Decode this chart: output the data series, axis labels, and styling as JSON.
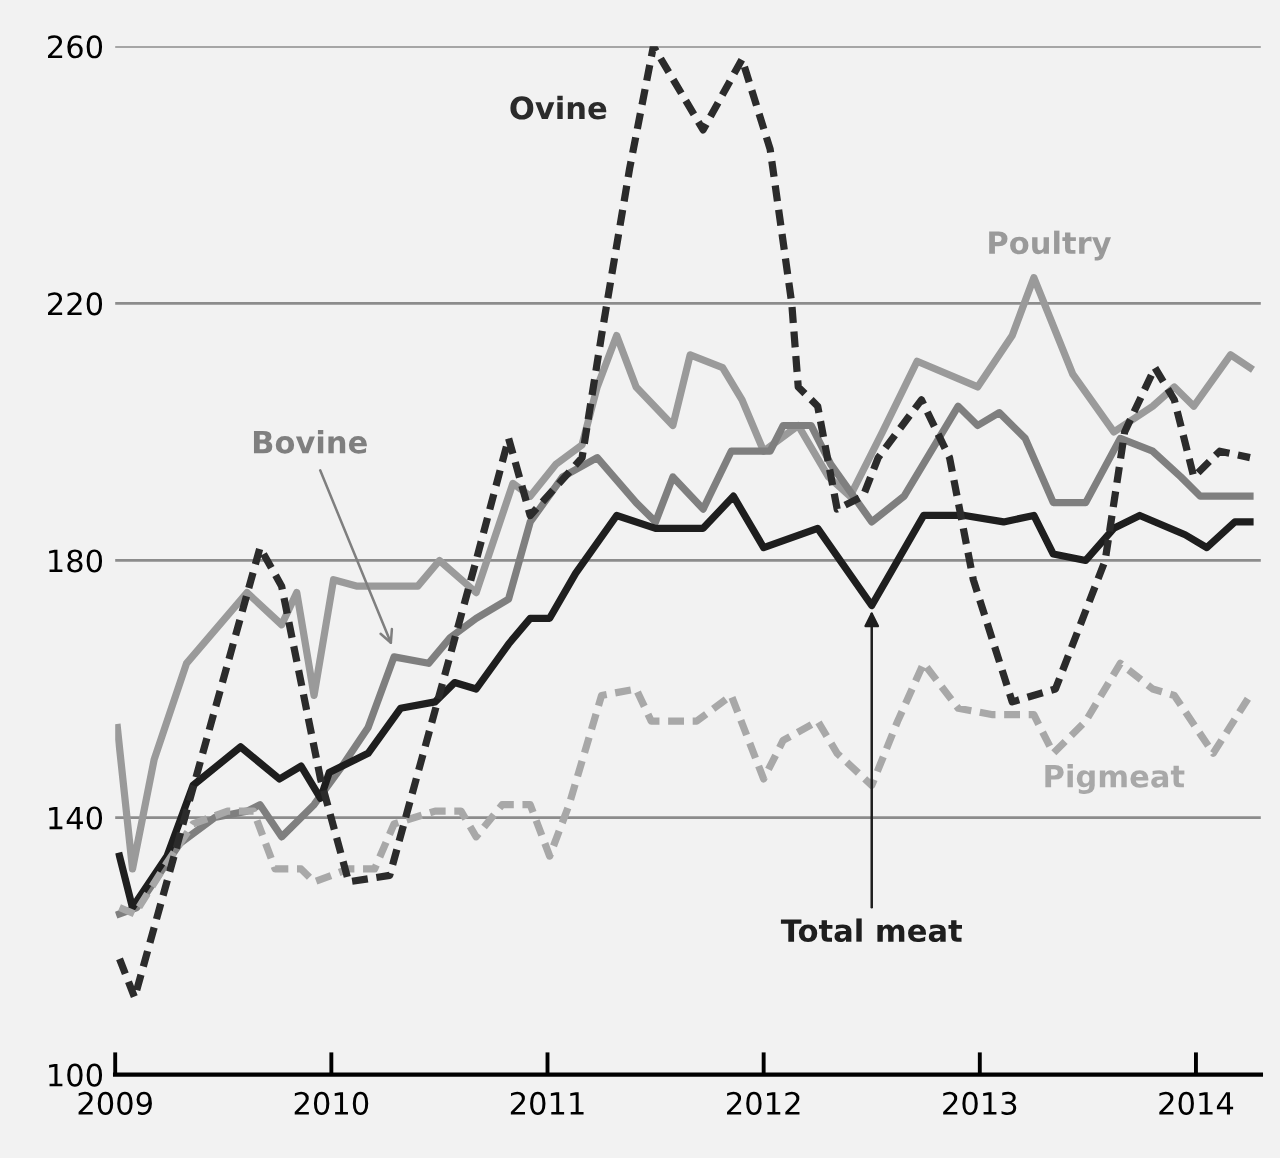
{
  "chart_data": {
    "type": "line",
    "xlim": [
      2009,
      2014.3
    ],
    "ylim": [
      100,
      260
    ],
    "xticks": [
      2009,
      2010,
      2011,
      2012,
      2013,
      2014
    ],
    "yticks": [
      100,
      140,
      180,
      220,
      260
    ],
    "grid": "y",
    "series": [
      {
        "name": "Ovine",
        "color": "#2b2b2b",
        "line_style": "dashed",
        "x": [
          2009.02,
          2009.09,
          2009.67,
          2009.77,
          2009.95,
          2010.08,
          2010.27,
          2010.45,
          2010.67,
          2010.82,
          2010.92,
          2011.16,
          2011.25,
          2011.38,
          2011.49,
          2011.72,
          2011.9,
          2012.03,
          2012.13,
          2012.16,
          2012.25,
          2012.34,
          2012.46,
          2012.53,
          2012.73,
          2012.86,
          2012.97,
          2013.15,
          2013.35,
          2013.58,
          2013.67,
          2013.81,
          2013.9,
          2013.99,
          2014.11,
          2014.25
        ],
        "values": [
          118,
          112,
          182,
          176,
          146,
          130,
          131,
          153,
          180,
          199,
          187,
          196,
          215,
          241,
          260,
          247,
          258,
          244,
          220,
          207,
          204,
          188,
          190,
          196,
          205,
          196,
          177,
          158,
          160,
          180,
          200,
          210,
          205,
          193,
          197,
          196
        ]
      },
      {
        "name": "Poultry",
        "color": "#9a9a9a",
        "line_style": "solid",
        "x": [
          2009.01,
          2009.08,
          2009.18,
          2009.33,
          2009.61,
          2009.77,
          2009.84,
          2009.92,
          2010.01,
          2010.12,
          2010.4,
          2010.5,
          2010.67,
          2010.84,
          2010.92,
          2011.04,
          2011.16,
          2011.23,
          2011.32,
          2011.41,
          2011.58,
          2011.66,
          2011.81,
          2011.9,
          2012.0,
          2012.16,
          2012.3,
          2012.4,
          2012.55,
          2012.71,
          2012.99,
          2013.15,
          2013.25,
          2013.43,
          2013.62,
          2013.8,
          2013.9,
          2013.99,
          2014.16,
          2014.25
        ],
        "values": [
          154,
          132,
          149,
          164,
          175,
          170,
          175,
          159,
          177,
          176,
          176,
          180,
          175,
          192,
          190,
          195,
          198,
          207,
          215,
          207,
          201,
          212,
          210,
          205,
          197,
          201,
          193,
          190,
          200,
          211,
          207,
          215,
          224,
          209,
          200,
          204,
          207,
          204,
          212,
          210
        ]
      },
      {
        "name": "Bovine",
        "color": "#7f7f7f",
        "line_style": "solid",
        "x": [
          2009.02,
          2009.1,
          2009.3,
          2009.46,
          2009.61,
          2009.67,
          2009.77,
          2009.92,
          2010.05,
          2010.17,
          2010.29,
          2010.45,
          2010.55,
          2010.67,
          2010.82,
          2010.92,
          2011.07,
          2011.23,
          2011.41,
          2011.5,
          2011.58,
          2011.72,
          2011.85,
          2012.03,
          2012.09,
          2012.22,
          2012.31,
          2012.5,
          2012.65,
          2012.9,
          2012.99,
          2013.09,
          2013.21,
          2013.34,
          2013.49,
          2013.65,
          2013.8,
          2013.93,
          2014.02,
          2014.25
        ],
        "values": [
          125,
          126,
          136,
          140,
          141,
          142,
          137,
          142,
          148,
          154,
          165,
          164,
          168,
          171,
          174,
          186,
          193,
          196,
          189,
          186,
          193,
          188,
          197,
          197,
          201,
          201,
          195,
          186,
          190,
          204,
          201,
          203,
          199,
          189,
          189,
          199,
          197,
          193,
          190,
          190
        ]
      },
      {
        "name": "Total meat",
        "color": "#1e1e1e",
        "line_style": "solid",
        "x": [
          2009.02,
          2009.08,
          2009.24,
          2009.36,
          2009.58,
          2009.76,
          2009.86,
          2009.95,
          2009.99,
          2010.17,
          2010.32,
          2010.48,
          2010.57,
          2010.67,
          2010.82,
          2010.92,
          2011.01,
          2011.13,
          2011.32,
          2011.5,
          2011.72,
          2011.86,
          2012.0,
          2012.25,
          2012.5,
          2012.74,
          2012.93,
          2013.11,
          2013.25,
          2013.34,
          2013.49,
          2013.62,
          2013.74,
          2013.95,
          2014.05,
          2014.18,
          2014.25
        ],
        "values": [
          134,
          126,
          134,
          145,
          151,
          146,
          148,
          143,
          147,
          150,
          157,
          158,
          161,
          160,
          167,
          171,
          171,
          178,
          187,
          185,
          185,
          190,
          182,
          185,
          173,
          187,
          187,
          186,
          187,
          181,
          180,
          185,
          187,
          184,
          182,
          186,
          186
        ]
      },
      {
        "name": "Pigmeat",
        "color": "#a8a8a8",
        "line_style": "dashed",
        "x": [
          2009.02,
          2009.09,
          2009.24,
          2009.36,
          2009.52,
          2009.64,
          2009.74,
          2009.86,
          2009.92,
          2010.08,
          2010.2,
          2010.29,
          2010.48,
          2010.6,
          2010.67,
          2010.79,
          2010.92,
          2011.01,
          2011.1,
          2011.25,
          2011.41,
          2011.48,
          2011.69,
          2011.85,
          2012.0,
          2012.09,
          2012.25,
          2012.34,
          2012.5,
          2012.62,
          2012.74,
          2012.9,
          2013.06,
          2013.25,
          2013.34,
          2013.49,
          2013.65,
          2013.8,
          2013.9,
          2014.08,
          2014.25
        ],
        "values": [
          126,
          125,
          133,
          139,
          141,
          141,
          132,
          132,
          130,
          132,
          132,
          139,
          141,
          141,
          137,
          142,
          142,
          134,
          142,
          159,
          160,
          155,
          155,
          159,
          146,
          152,
          155,
          150,
          145,
          155,
          164,
          157,
          156,
          156,
          150,
          155,
          164,
          160,
          159,
          150,
          159
        ]
      }
    ]
  }
}
